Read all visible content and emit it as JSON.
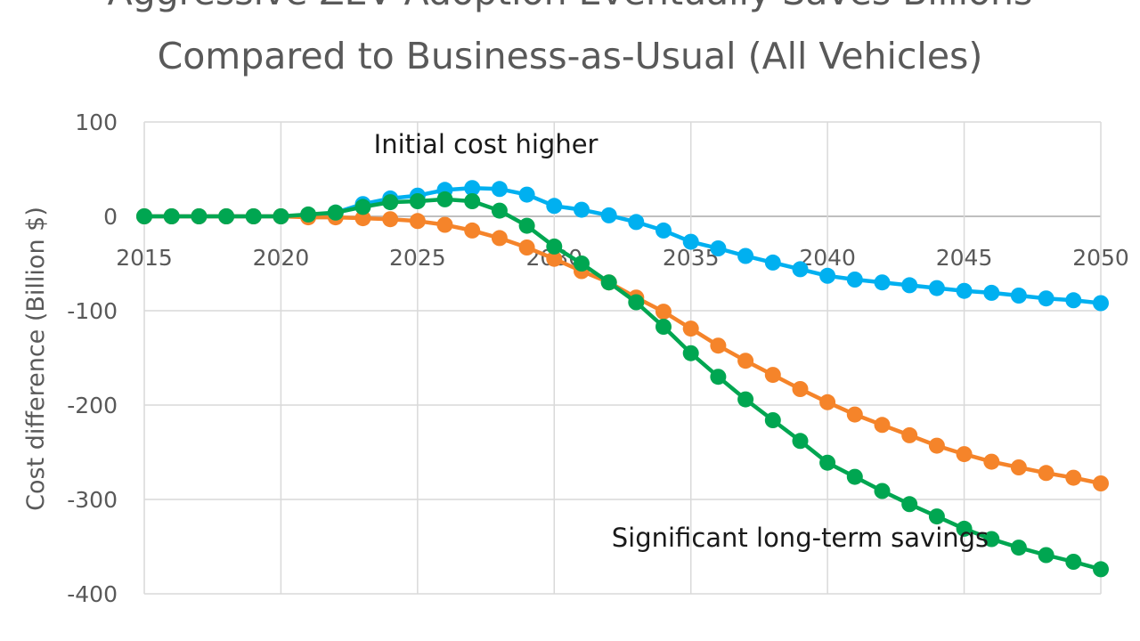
{
  "chart_data": {
    "type": "line",
    "title": "Aggressive ZEV Adoption Eventually Saves Billions Compared to Business-as-Usual (All Vehicles)",
    "title_lines": [
      "Aggressive ZEV Adoption Eventually Saves Billions",
      "Compared to Business-as-Usual (All Vehicles)"
    ],
    "xlabel": "",
    "ylabel": "Cost difference (Billion $)",
    "xlim": [
      2015,
      2050
    ],
    "ylim": [
      -400,
      100
    ],
    "x_ticks": [
      2015,
      2020,
      2025,
      2030,
      2035,
      2040,
      2045,
      2050
    ],
    "y_ticks": [
      100,
      0,
      -100,
      -200,
      -300,
      -400
    ],
    "grid": true,
    "legend": "none",
    "x": [
      2015,
      2016,
      2017,
      2018,
      2019,
      2020,
      2021,
      2022,
      2023,
      2024,
      2025,
      2026,
      2027,
      2028,
      2029,
      2030,
      2031,
      2032,
      2033,
      2034,
      2035,
      2036,
      2037,
      2038,
      2039,
      2040,
      2041,
      2042,
      2043,
      2044,
      2045,
      2046,
      2047,
      2048,
      2049,
      2050
    ],
    "series": [
      {
        "color": "#00b0f0",
        "values": [
          0,
          0,
          0,
          0,
          0,
          0,
          1,
          4,
          13,
          19,
          22,
          28,
          30,
          29,
          23,
          11,
          7,
          1,
          -6,
          -15,
          -27,
          -34,
          -42,
          -49,
          -56,
          -63,
          -67,
          -70,
          -73,
          -76,
          -79,
          -81,
          -84,
          -87,
          -89,
          -92
        ]
      },
      {
        "color": "#f5842a",
        "values": [
          0,
          0,
          0,
          0,
          0,
          0,
          -1,
          -1,
          -2,
          -3,
          -5,
          -9,
          -15,
          -23,
          -33,
          -45,
          -58,
          -70,
          -86,
          -101,
          -119,
          -137,
          -153,
          -168,
          -183,
          -197,
          -210,
          -221,
          -232,
          -243,
          -252,
          -260,
          -266,
          -272,
          -277,
          -283
        ]
      },
      {
        "color": "#00a651",
        "values": [
          0,
          0,
          0,
          0,
          0,
          0,
          2,
          4,
          10,
          15,
          16,
          18,
          16,
          6,
          -10,
          -32,
          -50,
          -70,
          -91,
          -117,
          -145,
          -170,
          -194,
          -216,
          -238,
          -261,
          -276,
          -291,
          -305,
          -318,
          -331,
          -342,
          -351,
          -359,
          -366,
          -374
        ]
      }
    ],
    "annotations": [
      {
        "text": "Initial cost higher",
        "x": 2027.5,
        "y": 67
      },
      {
        "text": "Significant long-term savings",
        "x": 2039.0,
        "y": -350
      }
    ]
  }
}
